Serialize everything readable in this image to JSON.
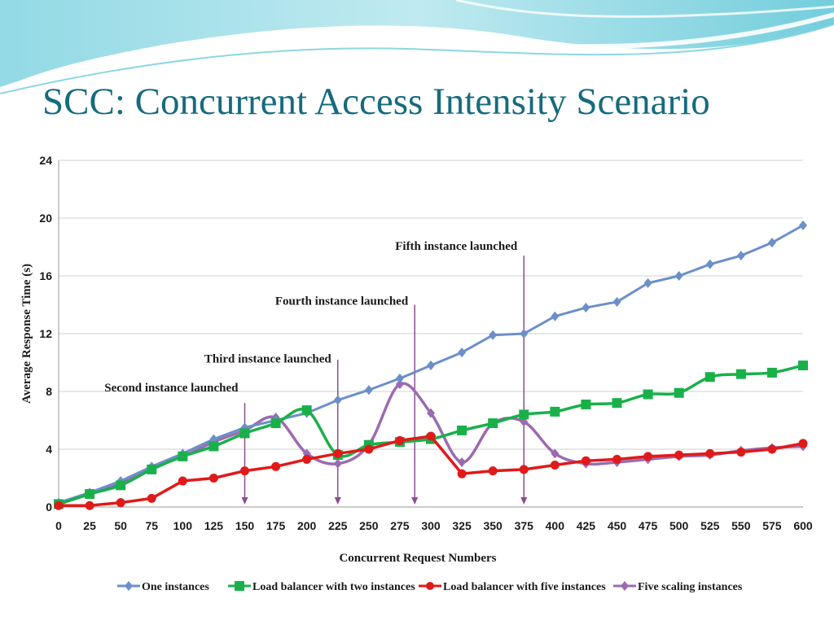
{
  "slide": {
    "title": "SCC: Concurrent Access Intensity Scenario"
  },
  "colors": {
    "title": "#156b7e",
    "wave": "#5bc5d6"
  },
  "chart_data": {
    "type": "line",
    "xlabel": "Concurrent Request Numbers",
    "ylabel": "Average Response Time (s)",
    "xlim": [
      0,
      600
    ],
    "ylim": [
      0,
      24
    ],
    "x_ticks": [
      0,
      25,
      50,
      75,
      100,
      125,
      150,
      175,
      200,
      225,
      250,
      275,
      300,
      325,
      350,
      375,
      400,
      425,
      450,
      475,
      500,
      525,
      550,
      575,
      600
    ],
    "y_ticks": [
      0,
      4,
      8,
      12,
      16,
      20,
      24
    ],
    "grid": "horizontal",
    "legend_position": "bottom",
    "series": [
      {
        "name": "One instances",
        "color": "#6b8fc9",
        "marker": "diamond",
        "x": [
          0,
          25,
          50,
          75,
          100,
          125,
          150,
          175,
          200,
          225,
          250,
          275,
          300,
          325,
          350,
          375,
          400,
          425,
          450,
          475,
          500,
          525,
          550,
          575,
          600
        ],
        "y": [
          0.3,
          1.0,
          1.8,
          2.8,
          3.7,
          4.7,
          5.5,
          6.0,
          6.5,
          7.4,
          8.1,
          8.9,
          9.8,
          10.7,
          11.9,
          12.0,
          13.2,
          13.8,
          14.2,
          15.5,
          16.0,
          16.8,
          17.4,
          18.3,
          19.5
        ]
      },
      {
        "name": "Load balancer with two instances",
        "color": "#19b04a",
        "marker": "square",
        "x": [
          0,
          25,
          50,
          75,
          100,
          125,
          150,
          175,
          200,
          225,
          250,
          275,
          300,
          325,
          350,
          375,
          400,
          425,
          450,
          475,
          500,
          525,
          550,
          575,
          600
        ],
        "y": [
          0.2,
          0.9,
          1.5,
          2.6,
          3.5,
          4.2,
          5.1,
          5.8,
          6.7,
          3.6,
          4.3,
          4.5,
          4.7,
          5.3,
          5.8,
          6.4,
          6.6,
          7.1,
          7.2,
          7.8,
          7.9,
          9.0,
          9.2,
          9.3,
          9.8
        ]
      },
      {
        "name": "Load balancer with five instances",
        "color": "#e01a1a",
        "marker": "circle",
        "x": [
          0,
          25,
          50,
          75,
          100,
          125,
          150,
          175,
          200,
          225,
          250,
          275,
          300,
          325,
          350,
          375,
          400,
          425,
          450,
          475,
          500,
          525,
          550,
          575,
          600
        ],
        "y": [
          0.1,
          0.1,
          0.3,
          0.6,
          1.8,
          2.0,
          2.5,
          2.8,
          3.3,
          3.7,
          4.0,
          4.6,
          4.9,
          2.3,
          2.5,
          2.6,
          2.9,
          3.2,
          3.3,
          3.5,
          3.6,
          3.7,
          3.8,
          4.0,
          4.4
        ]
      },
      {
        "name": "Five scaling instances",
        "color": "#9b6bb0",
        "marker": "diamond",
        "x": [
          0,
          25,
          50,
          75,
          100,
          125,
          150,
          175,
          200,
          225,
          250,
          275,
          300,
          325,
          350,
          375,
          400,
          425,
          450,
          475,
          500,
          525,
          550,
          575,
          600
        ],
        "y": [
          0.2,
          0.9,
          1.7,
          2.7,
          3.5,
          4.5,
          5.3,
          6.2,
          3.7,
          3.0,
          4.3,
          8.5,
          6.5,
          3.1,
          5.8,
          5.9,
          3.7,
          3.0,
          3.1,
          3.3,
          3.5,
          3.6,
          3.9,
          4.1,
          4.2
        ]
      }
    ],
    "annotations": [
      {
        "text": "Second instance launched",
        "x": 150
      },
      {
        "text": "Third instance launched",
        "x": 225
      },
      {
        "text": "Fourth instance launched",
        "x": 287
      },
      {
        "text": "Fifth instance launched",
        "x": 375
      }
    ],
    "annotation_color": "#8a4f8f"
  }
}
